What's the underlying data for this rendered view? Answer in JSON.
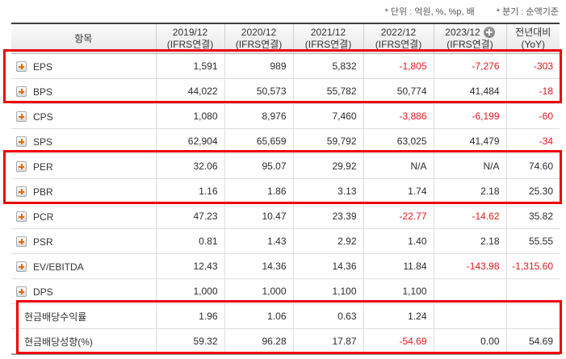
{
  "notes": {
    "unit": "* 단위 : 억원, %, %p, 배",
    "basis": "* 분기 : 순액기준"
  },
  "colors": {
    "highlight_border": "#ee0202",
    "negative_value": "#e4161c",
    "row_plus_icon_orange": "#ee6600",
    "header_top_border": "#3f3f3f"
  },
  "table": {
    "item_header": "항목",
    "columns": [
      {
        "period": "2019/12",
        "basis": "(IFRS연결)",
        "has_add_icon": false
      },
      {
        "period": "2020/12",
        "basis": "(IFRS연결)",
        "has_add_icon": false
      },
      {
        "period": "2021/12",
        "basis": "(IFRS연결)",
        "has_add_icon": false
      },
      {
        "period": "2022/12",
        "basis": "(IFRS연결)",
        "has_add_icon": false
      },
      {
        "period": "2023/12",
        "basis": "(IFRS연결)",
        "has_add_icon": true
      },
      {
        "period": "전년대비",
        "basis": "(YoY)",
        "has_add_icon": false
      }
    ],
    "rows": [
      {
        "label": "EPS",
        "expandable": true,
        "values": [
          "1,591",
          "989",
          "5,832",
          "-1,805",
          "-7,276",
          "-303"
        ]
      },
      {
        "label": "BPS",
        "expandable": true,
        "values": [
          "44,022",
          "50,573",
          "55,782",
          "50,774",
          "41,484",
          "-18"
        ]
      },
      {
        "label": "CPS",
        "expandable": true,
        "values": [
          "1,080",
          "8,976",
          "7,460",
          "-3,886",
          "-6,199",
          "-60"
        ]
      },
      {
        "label": "SPS",
        "expandable": true,
        "values": [
          "62,904",
          "65,659",
          "59,792",
          "63,025",
          "41,479",
          "-34"
        ]
      },
      {
        "label": "PER",
        "expandable": true,
        "values": [
          "32.06",
          "95.07",
          "29.92",
          "N/A",
          "N/A",
          "74.60"
        ]
      },
      {
        "label": "PBR",
        "expandable": true,
        "values": [
          "1.16",
          "1.86",
          "3.13",
          "1.74",
          "2.18",
          "25.30"
        ]
      },
      {
        "label": "PCR",
        "expandable": true,
        "values": [
          "47.23",
          "10.47",
          "23.39",
          "-22.77",
          "-14.62",
          "35.82"
        ]
      },
      {
        "label": "PSR",
        "expandable": true,
        "values": [
          "0.81",
          "1.43",
          "2.92",
          "1.40",
          "2.18",
          "55.55"
        ]
      },
      {
        "label": "EV/EBITDA",
        "expandable": true,
        "values": [
          "12.43",
          "14.36",
          "14.36",
          "11.84",
          "-143.98",
          "-1,315.60"
        ]
      },
      {
        "label": "DPS",
        "expandable": true,
        "values": [
          "1,000",
          "1,000",
          "1,100",
          "1,100",
          "",
          ""
        ]
      },
      {
        "label": "현금배당수익률",
        "expandable": false,
        "values": [
          "1.96",
          "1.06",
          "0.63",
          "1.24",
          "",
          ""
        ]
      },
      {
        "label": "현금배당성향(%)",
        "expandable": false,
        "values": [
          "59.32",
          "96.28",
          "17.87",
          "-54.69",
          "0.00",
          "54.69"
        ]
      }
    ]
  }
}
